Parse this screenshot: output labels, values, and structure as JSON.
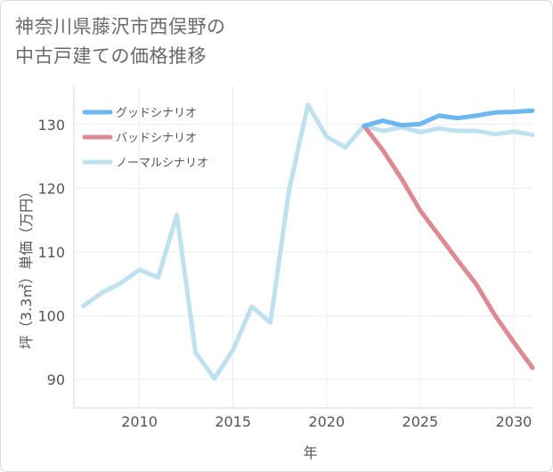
{
  "title": {
    "line1": "神奈川県藤沢市西俣野の",
    "line2": "中古戸建ての価格推移"
  },
  "chart_data": {
    "type": "line",
    "xlabel": "年",
    "ylabel": "坪（3.3㎡）単価（万円）",
    "xlim": [
      2006.5,
      2031
    ],
    "ylim": [
      85.5,
      136
    ],
    "x_ticks": [
      2010,
      2015,
      2020,
      2025,
      2030
    ],
    "y_ticks": [
      90,
      100,
      110,
      120,
      130
    ],
    "grid": true,
    "legend_position": "top-left",
    "series": [
      {
        "name": "グッドシナリオ",
        "color": "#6cb7ef",
        "x": [
          2022,
          2023,
          2024,
          2025,
          2026,
          2027,
          2028,
          2029,
          2030,
          2031
        ],
        "y": [
          129.8,
          130.6,
          129.9,
          130.1,
          131.4,
          131.0,
          131.4,
          131.9,
          132.0,
          132.2
        ]
      },
      {
        "name": "バッドシナリオ",
        "color": "#dc8a93",
        "x": [
          2022,
          2023,
          2024,
          2025,
          2026,
          2027,
          2028,
          2029,
          2030,
          2031
        ],
        "y": [
          129.8,
          126.0,
          121.5,
          116.5,
          112.6,
          108.7,
          104.9,
          100.0,
          95.8,
          91.8
        ]
      },
      {
        "name": "ノーマルシナリオ",
        "color": "#bfe0ef",
        "x": [
          2007,
          2008,
          2009,
          2010,
          2011,
          2012,
          2013,
          2014,
          2015,
          2016,
          2017,
          2018,
          2019,
          2020,
          2021,
          2022,
          2023,
          2024,
          2025,
          2026,
          2027,
          2028,
          2029,
          2030,
          2031
        ],
        "y": [
          101.5,
          103.6,
          105.1,
          107.2,
          106.0,
          115.8,
          94.2,
          90.1,
          94.6,
          101.4,
          98.9,
          119.8,
          133.1,
          128.1,
          126.4,
          129.8,
          129.0,
          129.6,
          128.8,
          129.4,
          129.0,
          129.0,
          128.5,
          128.9,
          128.4
        ]
      }
    ]
  }
}
